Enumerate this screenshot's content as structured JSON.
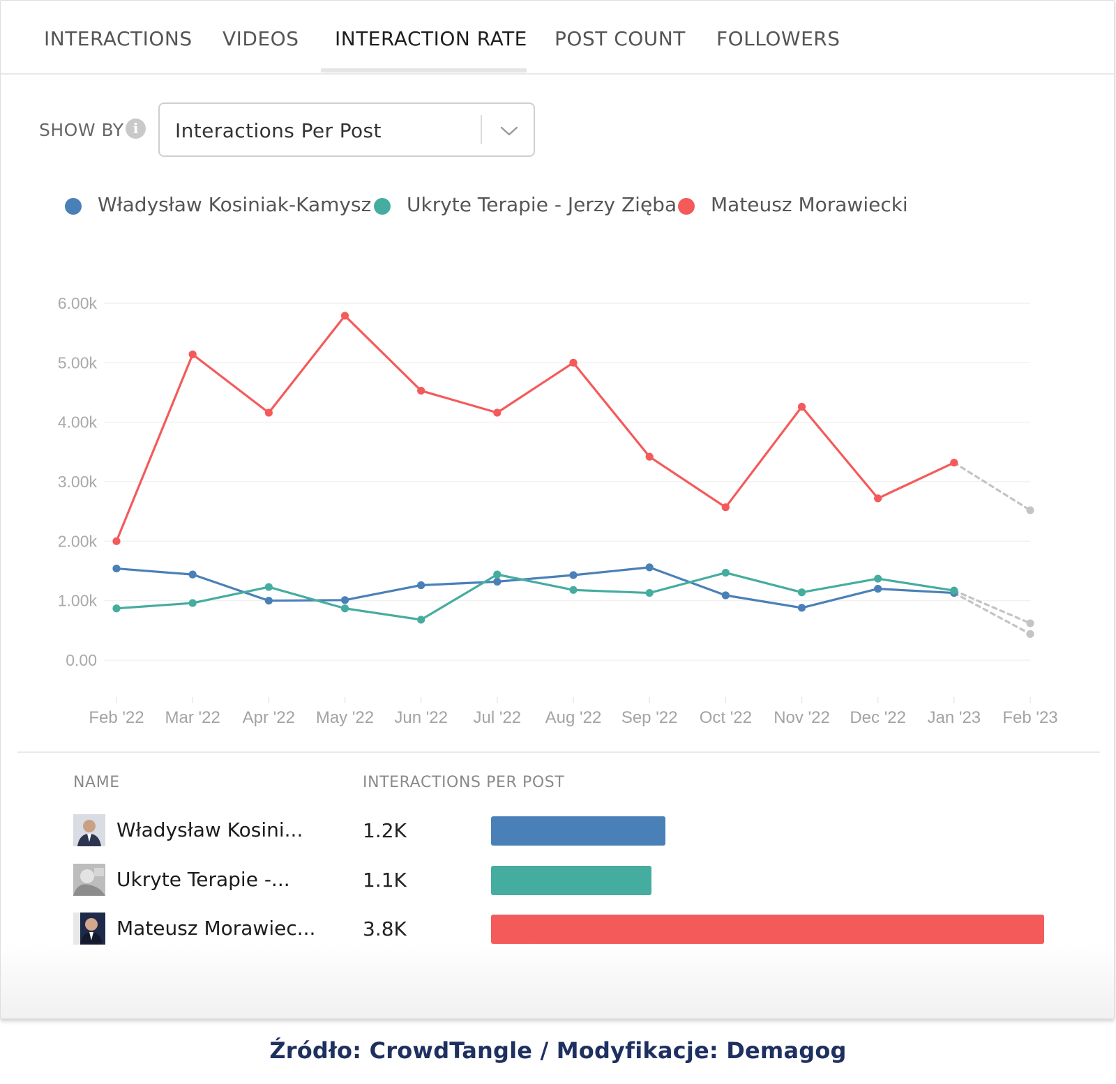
{
  "tabs": [
    {
      "label": "INTERACTIONS",
      "active": false
    },
    {
      "label": "VIDEOS",
      "active": false
    },
    {
      "label": "INTERACTION RATE",
      "active": true
    },
    {
      "label": "POST COUNT",
      "active": false
    },
    {
      "label": "FOLLOWERS",
      "active": false
    }
  ],
  "show_by": {
    "label": "SHOW BY",
    "info_glyph": "i",
    "selected": "Interactions Per Post"
  },
  "legend": [
    {
      "label": "Władysław Kosiniak-Kamysz",
      "color": "#4a80b8"
    },
    {
      "label": "Ukryte Terapie - Jerzy Zięba",
      "color": "#45ad9f"
    },
    {
      "label": "Mateusz Morawiecki",
      "color": "#f55a5a"
    }
  ],
  "chart_data": {
    "type": "line",
    "x": [
      "Feb '22",
      "Mar '22",
      "Apr '22",
      "May '22",
      "Jun '22",
      "Jul '22",
      "Aug '22",
      "Sep '22",
      "Oct '22",
      "Nov '22",
      "Dec '22",
      "Jan '23",
      "Feb '23"
    ],
    "y_ticks": [
      "6.00k",
      "5.00k",
      "4.00k",
      "3.00k",
      "2.00k",
      "1.00k",
      "0.00"
    ],
    "ylim": [
      0,
      6000
    ],
    "grid": true,
    "projection_color": "#c4c4c4",
    "series": [
      {
        "name": "Władysław Kosiniak-Kamysz",
        "color": "#4a80b8",
        "values": [
          1540,
          1440,
          1000,
          1010,
          1260,
          1320,
          1430,
          1560,
          1090,
          880,
          1200,
          1130,
          440
        ],
        "projected_last": true
      },
      {
        "name": "Ukryte Terapie - Jerzy Zięba",
        "color": "#45ad9f",
        "values": [
          870,
          960,
          1230,
          870,
          680,
          1440,
          1180,
          1130,
          1470,
          1140,
          1370,
          1170,
          620
        ],
        "projected_last": true
      },
      {
        "name": "Mateusz Morawiecki",
        "color": "#f55a5a",
        "values": [
          2000,
          5140,
          4160,
          5790,
          4530,
          4160,
          5000,
          3420,
          2570,
          4260,
          2720,
          3320,
          2520
        ],
        "projected_last": true
      }
    ]
  },
  "table": {
    "headers": {
      "name": "NAME",
      "value": "INTERACTIONS PER POST"
    },
    "rows": [
      {
        "name": "Władysław Kosini...",
        "value_label": "1.2K",
        "value": 1200,
        "color": "#4a80b8"
      },
      {
        "name": "Ukryte Terapie -...",
        "value_label": "1.1K",
        "value": 1100,
        "color": "#45ad9f"
      },
      {
        "name": "Mateusz Morawiec...",
        "value_label": "3.8K",
        "value": 3800,
        "color": "#f55a5a"
      }
    ]
  },
  "caption": "Źródło: CrowdTangle / Modyfikacje: Demagog"
}
